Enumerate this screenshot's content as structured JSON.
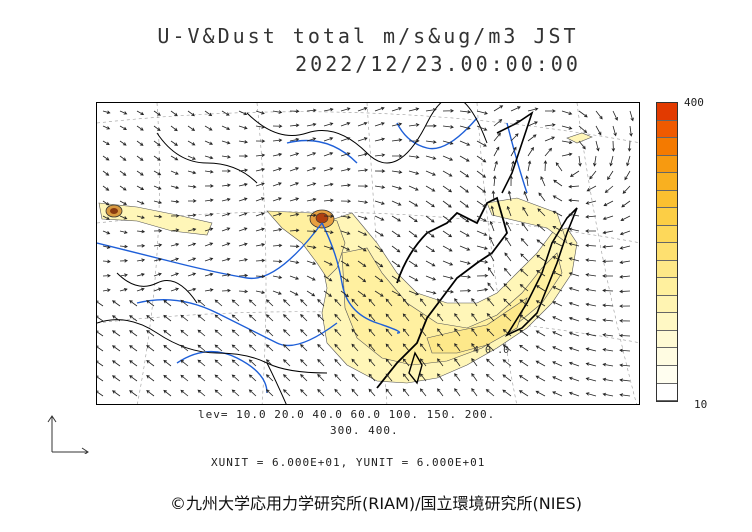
{
  "title": {
    "line1": "U-V&Dust total m/s&ug/m3 JST",
    "line2": "2022/12/23.00:00:00"
  },
  "map": {
    "contour_label": "4 0 .0",
    "reference_vector": "north-east-axes-icon"
  },
  "colorbar": {
    "max_label": "400",
    "min_label": "10",
    "colors": [
      "#e23a00",
      "#ef5a00",
      "#f47a00",
      "#f79a10",
      "#f9b020",
      "#fbc030",
      "#fcce45",
      "#fdd85a",
      "#fee070",
      "#fee888",
      "#fff09e",
      "#fff4b2",
      "#fff8c4",
      "#fffad4",
      "#fffce2",
      "#fffef0",
      "#ffffff"
    ]
  },
  "legend": {
    "lev_line1": "lev= 10.0 20.0 40.0 60.0 100. 150. 200.",
    "lev_line2": "300. 400.",
    "units": "XUNIT = 6.000E+01, YUNIT = 6.000E+01"
  },
  "copyright": "©九州大学応用力学研究所(RIAM)/国立環境研究所(NIES)"
}
